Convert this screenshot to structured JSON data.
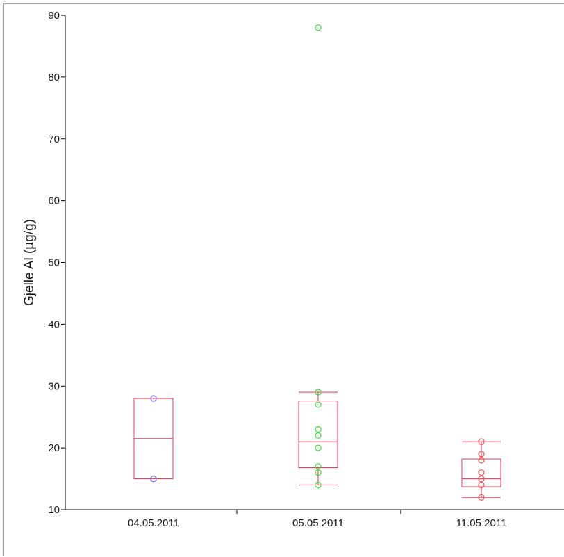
{
  "chart_data": {
    "type": "box",
    "title": "",
    "xlabel": "",
    "ylabel": "Gjelle Al (µg/g)",
    "ylim": [
      10,
      90
    ],
    "yticks": [
      10,
      20,
      30,
      40,
      50,
      60,
      70,
      80,
      90
    ],
    "grid": false,
    "categories": [
      "04.05.2011",
      "05.05.2011",
      "11.05.2011"
    ],
    "groups": [
      {
        "category": "04.05.2011",
        "color": "#6666ff",
        "points": [
          15,
          28
        ],
        "box": {
          "q1": 15,
          "median": 21.5,
          "q3": 28
        },
        "whiskers": null
      },
      {
        "category": "05.05.2011",
        "color": "#33dd33",
        "points": [
          88,
          29,
          27,
          23,
          22,
          20,
          17,
          16,
          14
        ],
        "box": {
          "q1": 16.8,
          "median": 21,
          "q3": 27.6
        },
        "whiskers": [
          14,
          29
        ]
      },
      {
        "category": "11.05.2011",
        "color": "#ff4d4d",
        "points": [
          21,
          19,
          18,
          16,
          15,
          14,
          12
        ],
        "box": {
          "q1": 13.7,
          "median": 15,
          "q3": 18.2
        },
        "whiskers": [
          12,
          21
        ]
      }
    ],
    "box_color": "#e8334d",
    "axis_color": "#000000"
  }
}
